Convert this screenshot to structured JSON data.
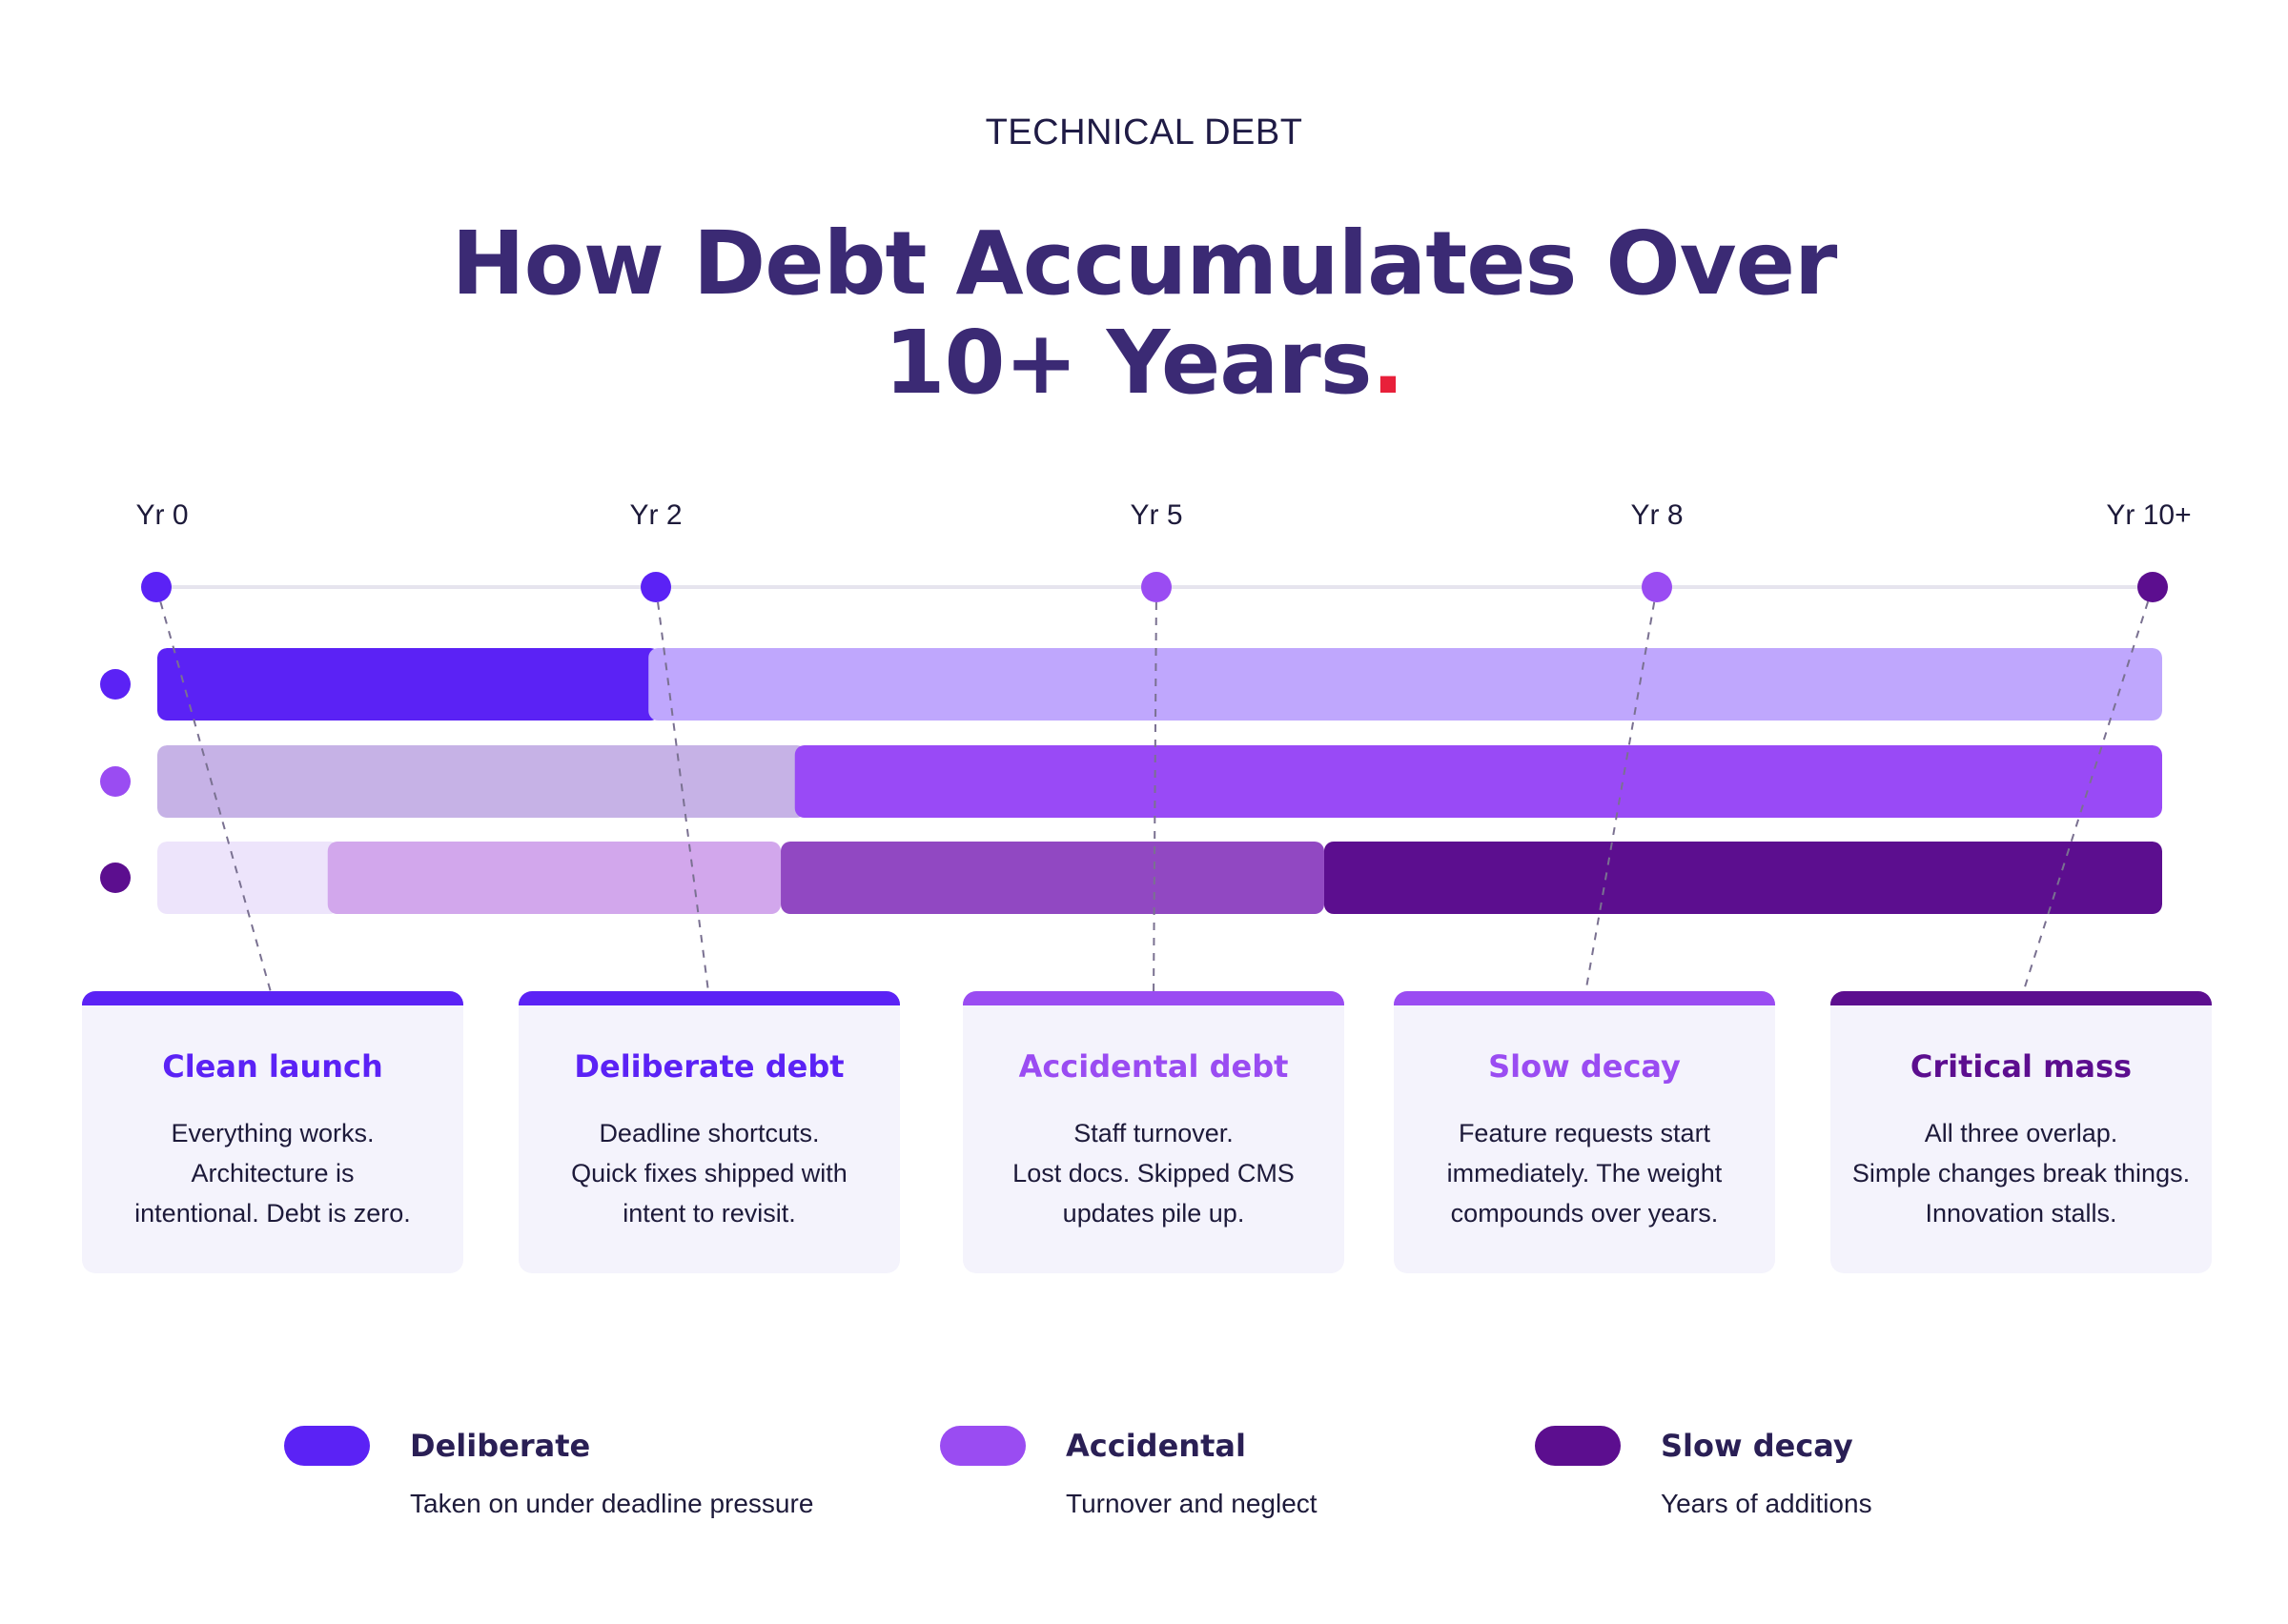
{
  "header": {
    "eyebrow": "TECHNICAL DEBT",
    "title_line1": "How Debt Accumulates Over",
    "title_line2": "10+ Years",
    "title_dot": ".",
    "accent_dot_color": "#e8203a"
  },
  "timeline": {
    "labels": [
      "Yr 0",
      "Yr 2",
      "Yr 5",
      "Yr 8",
      "Yr 10+"
    ],
    "marker_colors": [
      "#5b22f5",
      "#5b22f5",
      "#9a4cf2",
      "#9a4cf2",
      "#5c0e8f"
    ]
  },
  "tracks": [
    {
      "dot_color": "#5b22f5",
      "segments": [
        {
          "from": 0,
          "to": 0.245,
          "color": "#5b22f5"
        },
        {
          "from": 0.245,
          "to": 1,
          "color": "#bfa7fd"
        }
      ]
    },
    {
      "dot_color": "#9a4cf2",
      "segments": [
        {
          "from": 0,
          "to": 0.318,
          "color": "#c6b2e6"
        },
        {
          "from": 0.318,
          "to": 1,
          "color": "#994af6"
        }
      ]
    },
    {
      "dot_color": "#5c0e8f",
      "segments": [
        {
          "from": 0,
          "to": 0.085,
          "color": "#ede4fb"
        },
        {
          "from": 0.085,
          "to": 0.311,
          "color": "#d2a7ec"
        },
        {
          "from": 0.311,
          "to": 0.582,
          "color": "#9148c2"
        },
        {
          "from": 0.582,
          "to": 1,
          "color": "#5c0e8f"
        }
      ]
    }
  ],
  "cards": [
    {
      "title": "Clean launch",
      "color": "#5b22f5",
      "lines": [
        "Everything works.",
        "Architecture is",
        "intentional. Debt is zero."
      ]
    },
    {
      "title": "Deliberate debt",
      "color": "#5b22f5",
      "lines": [
        "Deadline shortcuts.",
        "Quick fixes shipped with",
        "intent to revisit."
      ]
    },
    {
      "title": "Accidental debt",
      "color": "#9a4cf2",
      "lines": [
        "Staff turnover.",
        "Lost docs. Skipped CMS",
        "updates pile up."
      ]
    },
    {
      "title": "Slow decay",
      "color": "#9a4cf2",
      "lines": [
        "Feature requests start",
        "immediately. The weight",
        "compounds over years."
      ]
    },
    {
      "title": "Critical mass",
      "color": "#5c0e8f",
      "lines": [
        "All three overlap.",
        "Simple changes break things.",
        "Innovation stalls."
      ]
    }
  ],
  "legend": [
    {
      "name": "Deliberate",
      "desc": "Taken on under deadline pressure",
      "color": "#5b22f5"
    },
    {
      "name": "Accidental",
      "desc": "Turnover and neglect",
      "color": "#9a4cf2"
    },
    {
      "name": "Slow decay",
      "desc": "Years of additions",
      "color": "#5c0e8f"
    }
  ]
}
